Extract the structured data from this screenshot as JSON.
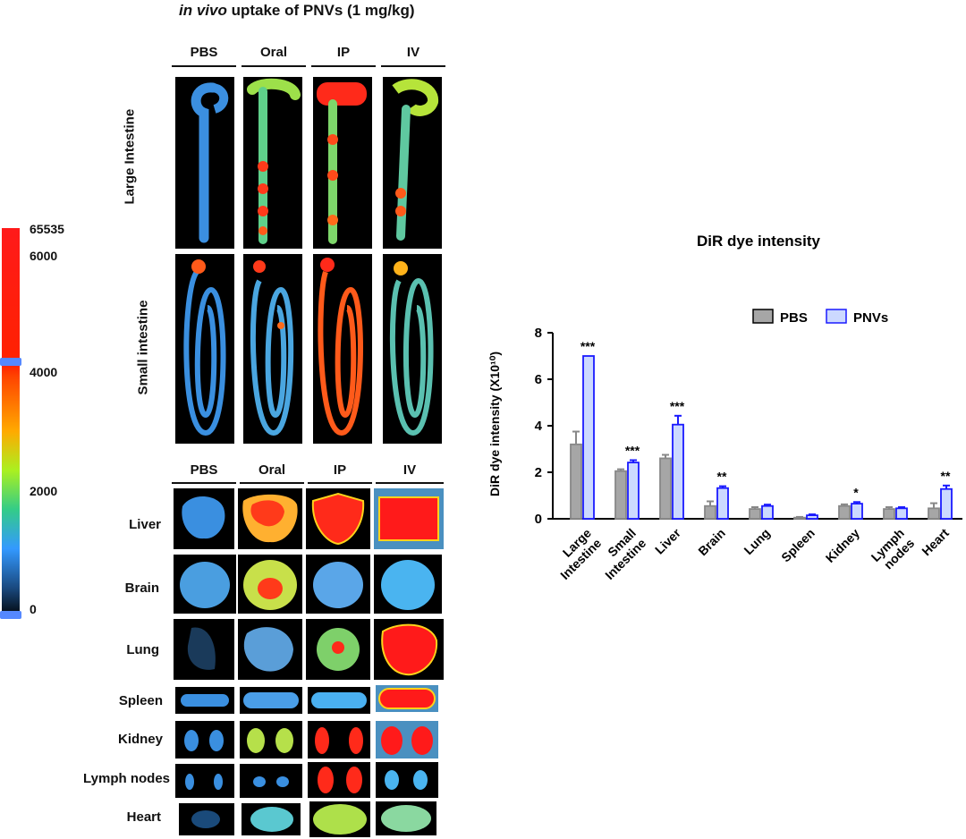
{
  "figure": {
    "title_italic": "in vivo",
    "title_rest": " uptake of PNVs (1 mg/kg)",
    "columns_top": [
      "PBS",
      "Oral",
      "IP",
      "IV"
    ],
    "columns_bottom": [
      "PBS",
      "Oral",
      "IP",
      "IV"
    ],
    "intestine_rows": [
      "Large Intestine",
      "Small intestine"
    ],
    "organ_rows": [
      "Liver",
      "Brain",
      "Lung",
      "Spleen",
      "Kidney",
      "Lymph nodes",
      "Heart"
    ]
  },
  "colorscale": {
    "labels": [
      "65535",
      "6000",
      "4000",
      "2000",
      "0"
    ],
    "colors": [
      "#ff1a1a",
      "#ff3300",
      "#ffcc00",
      "#99ff33",
      "#33cc99",
      "#3399ff",
      "#000000"
    ]
  },
  "chart_data": {
    "type": "bar",
    "title": "DiR dye intensity",
    "ylabel": "DiR dye intensity (X10¹⁰)",
    "ylim": [
      0,
      8
    ],
    "yticks": [
      0,
      2,
      4,
      6,
      8
    ],
    "categories": [
      "Large Intestine",
      "Small Intestine",
      "Liver",
      "Brain",
      "Lung",
      "Spleen",
      "Kidney",
      "Lymph nodes",
      "Heart"
    ],
    "category_lines": [
      [
        "Large",
        "Intestine"
      ],
      [
        "Small",
        "Intestine"
      ],
      [
        "Liver"
      ],
      [
        "Brain"
      ],
      [
        "Lung"
      ],
      [
        "Spleen"
      ],
      [
        "Kidney"
      ],
      [
        "Lymph",
        "nodes"
      ],
      [
        "Heart"
      ]
    ],
    "series": [
      {
        "name": "PBS",
        "values": [
          3.2,
          2.05,
          2.6,
          0.55,
          0.42,
          0.05,
          0.55,
          0.42,
          0.45
        ],
        "errors": [
          0.55,
          0.08,
          0.15,
          0.2,
          0.08,
          0.03,
          0.07,
          0.08,
          0.22
        ],
        "color": "#888888",
        "fill": "#a6a6a6"
      },
      {
        "name": "PNVs",
        "values": [
          7.0,
          2.42,
          4.05,
          1.32,
          0.55,
          0.15,
          0.65,
          0.45,
          1.28
        ],
        "errors": [
          0.0,
          0.1,
          0.38,
          0.08,
          0.06,
          0.04,
          0.07,
          0.05,
          0.15
        ],
        "color": "#1a1aff",
        "fill": "#ccd9ff"
      }
    ],
    "significance": [
      "***",
      "***",
      "***",
      "**",
      "",
      "",
      "*",
      "",
      "**"
    ],
    "legend": "top-right"
  }
}
